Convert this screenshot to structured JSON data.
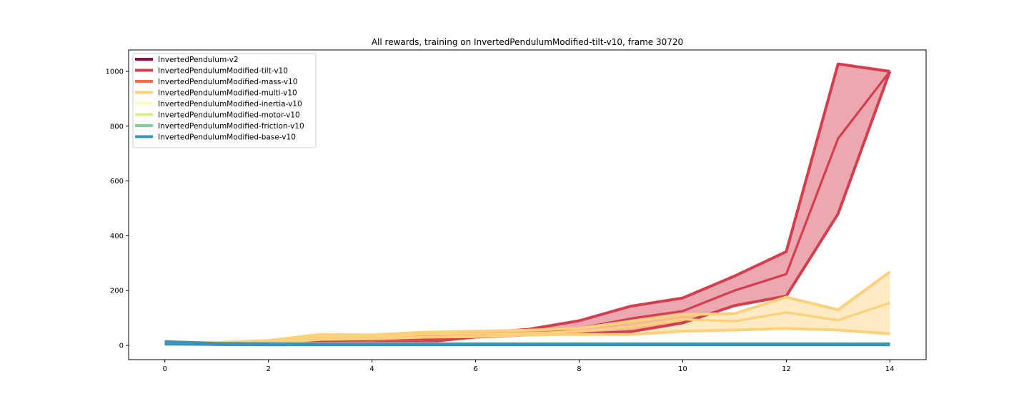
{
  "chart_data": {
    "type": "line",
    "title": "All rewards, training on InvertedPendulumModified-tilt-v10, frame 30720",
    "xlabel": "",
    "ylabel": "",
    "xlim": [
      -0.7,
      14.7
    ],
    "ylim": [
      -52,
      1078
    ],
    "x_ticks": [
      0,
      2,
      4,
      6,
      8,
      10,
      12,
      14
    ],
    "y_ticks": [
      0,
      200,
      400,
      600,
      800,
      1000
    ],
    "grid": false,
    "legend_position": "top-left",
    "x": [
      0,
      1,
      2,
      3,
      4,
      5,
      6,
      7,
      8,
      9,
      10,
      11,
      12,
      13,
      14
    ],
    "series": [
      {
        "name": "InvertedPendulum-v2",
        "color": "#9e0142",
        "mean": [
          5,
          5,
          5,
          5,
          5,
          5,
          5,
          5,
          5,
          5,
          5,
          5,
          5,
          5,
          5
        ],
        "lower": [
          4,
          4,
          4,
          4,
          4,
          4,
          4,
          4,
          4,
          4,
          4,
          4,
          4,
          4,
          4
        ],
        "upper": [
          6,
          6,
          6,
          6,
          6,
          6,
          6,
          6,
          6,
          6,
          6,
          6,
          6,
          6,
          6
        ]
      },
      {
        "name": "InvertedPendulumModified-tilt-v10",
        "color": "#d53e4f",
        "mean": [
          8,
          5,
          8,
          18,
          20,
          22,
          38,
          48,
          62,
          98,
          125,
          200,
          260,
          755,
          1000
        ],
        "lower": [
          5,
          4,
          5,
          10,
          10,
          12,
          30,
          38,
          42,
          50,
          82,
          145,
          180,
          480,
          1000
        ],
        "upper": [
          12,
          7,
          12,
          25,
          30,
          32,
          45,
          58,
          90,
          143,
          173,
          253,
          342,
          1027,
          1000
        ]
      },
      {
        "name": "InvertedPendulumModified-mass-v10",
        "color": "#f46d43",
        "mean": [
          5,
          5,
          5,
          5,
          5,
          5,
          5,
          5,
          5,
          5,
          5,
          5,
          5,
          5,
          5
        ],
        "lower": [
          4,
          4,
          4,
          4,
          4,
          4,
          4,
          4,
          4,
          4,
          4,
          4,
          4,
          4,
          4
        ],
        "upper": [
          6,
          6,
          6,
          6,
          6,
          6,
          6,
          6,
          6,
          6,
          6,
          6,
          6,
          6,
          6
        ]
      },
      {
        "name": "InvertedPendulumModified-multi-v10",
        "color": "#fdd17b",
        "mean": [
          8,
          8,
          12,
          30,
          32,
          40,
          42,
          45,
          50,
          68,
          95,
          88,
          120,
          92,
          155
        ],
        "lower": [
          5,
          5,
          8,
          22,
          24,
          30,
          32,
          38,
          40,
          40,
          52,
          56,
          62,
          56,
          42
        ],
        "upper": [
          12,
          10,
          18,
          40,
          38,
          48,
          52,
          55,
          62,
          88,
          112,
          116,
          176,
          130,
          268
        ]
      },
      {
        "name": "InvertedPendulumModified-inertia-v10",
        "color": "#fefebd",
        "mean": [
          5,
          5,
          5,
          5,
          5,
          5,
          5,
          5,
          5,
          5,
          5,
          5,
          5,
          5,
          5
        ],
        "lower": [
          4,
          4,
          4,
          4,
          4,
          4,
          4,
          4,
          4,
          4,
          4,
          4,
          4,
          4,
          4
        ],
        "upper": [
          6,
          6,
          6,
          6,
          6,
          6,
          6,
          6,
          6,
          6,
          6,
          6,
          6,
          6,
          6
        ]
      },
      {
        "name": "InvertedPendulumModified-motor-v10",
        "color": "#d9ef8b",
        "mean": [
          5,
          5,
          5,
          5,
          5,
          5,
          5,
          5,
          5,
          5,
          5,
          5,
          5,
          5,
          5
        ],
        "lower": [
          4,
          4,
          4,
          4,
          4,
          4,
          4,
          4,
          4,
          4,
          4,
          4,
          4,
          4,
          4
        ],
        "upper": [
          6,
          6,
          6,
          6,
          6,
          6,
          6,
          6,
          6,
          6,
          6,
          6,
          6,
          6,
          6
        ]
      },
      {
        "name": "InvertedPendulumModified-friction-v10",
        "color": "#7fce9b",
        "mean": [
          5,
          5,
          5,
          5,
          5,
          5,
          5,
          5,
          5,
          5,
          5,
          5,
          5,
          5,
          5
        ],
        "lower": [
          4,
          4,
          4,
          4,
          4,
          4,
          4,
          4,
          4,
          4,
          4,
          4,
          4,
          4,
          4
        ],
        "upper": [
          6,
          6,
          6,
          6,
          6,
          6,
          6,
          6,
          6,
          6,
          6,
          6,
          6,
          6,
          6
        ]
      },
      {
        "name": "InvertedPendulumModified-base-v10",
        "color": "#3c92b8",
        "mean": [
          9,
          5,
          4,
          3,
          3,
          3,
          3,
          3,
          3,
          3,
          3,
          3,
          3,
          3,
          3
        ],
        "lower": [
          6,
          3,
          2,
          2,
          2,
          2,
          2,
          2,
          2,
          2,
          2,
          2,
          2,
          2,
          2
        ],
        "upper": [
          14,
          7,
          6,
          4,
          4,
          4,
          4,
          4,
          4,
          4,
          4,
          4,
          4,
          4,
          4
        ]
      }
    ]
  }
}
